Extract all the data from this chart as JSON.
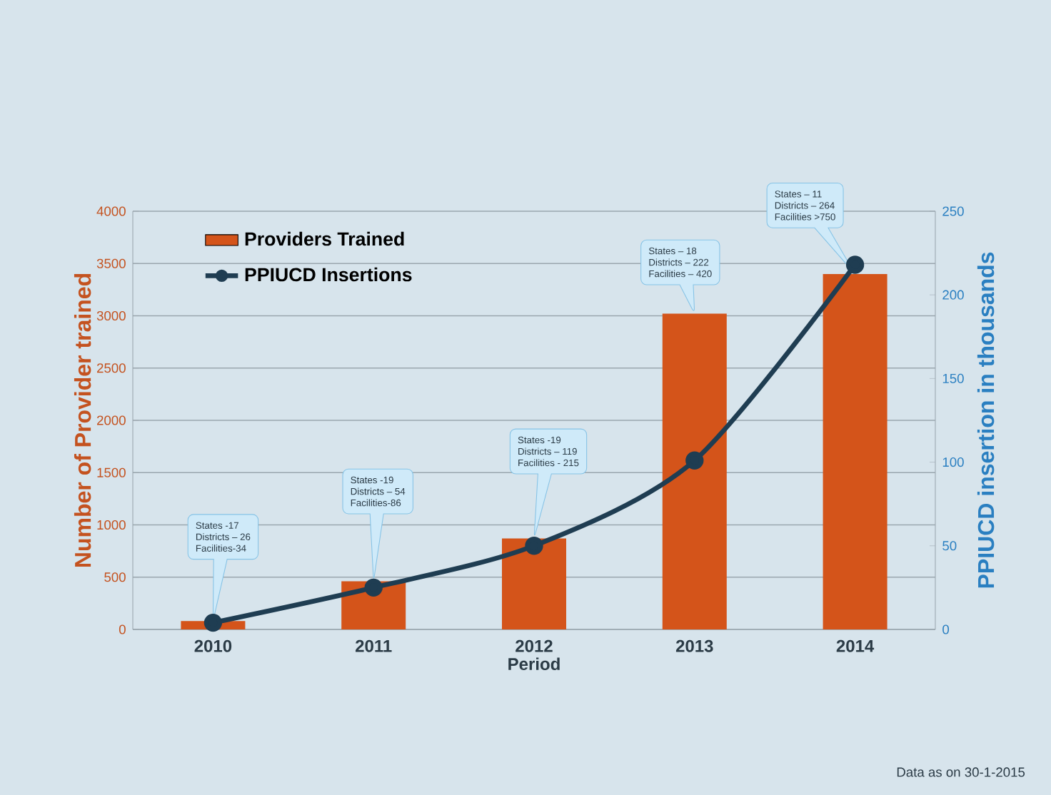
{
  "chart_data": {
    "type": "bar",
    "categories": [
      "2010",
      "2011",
      "2012",
      "2013",
      "2014"
    ],
    "xlabel": "Period",
    "ylabel": "Number of Provider trained",
    "y2label": "PPIUCD insertion in thousands",
    "ylim": [
      0,
      4000
    ],
    "yticks": [
      0,
      500,
      1000,
      1500,
      2000,
      2500,
      3000,
      3500,
      4000
    ],
    "y2lim": [
      0,
      250
    ],
    "y2ticks": [
      0,
      50,
      100,
      150,
      200,
      250
    ],
    "grid": "y",
    "legend": "top left",
    "marker": "circle",
    "series": [
      {
        "name": "Providers Trained",
        "color": "#d4541a",
        "values": [
          80,
          460,
          870,
          3020,
          3400
        ]
      },
      {
        "name": "PPIUCD Insertions",
        "type": "line",
        "axis": "y2",
        "color": "#1f3d52",
        "values": [
          4,
          25,
          50,
          101,
          218
        ]
      }
    ],
    "annotations": [
      "States -17",
      "Districts – 26",
      "Facilities-34",
      "States -19",
      "Districts – 54",
      "Facilities-86",
      "States -19",
      "Districts – 119",
      "Facilities - 215",
      "States – 18",
      "Districts – 222",
      "Facilities – 420",
      "States – 11",
      "Districts – 264",
      "Facilities >750",
      "Data as on 30-1-2015"
    ]
  }
}
